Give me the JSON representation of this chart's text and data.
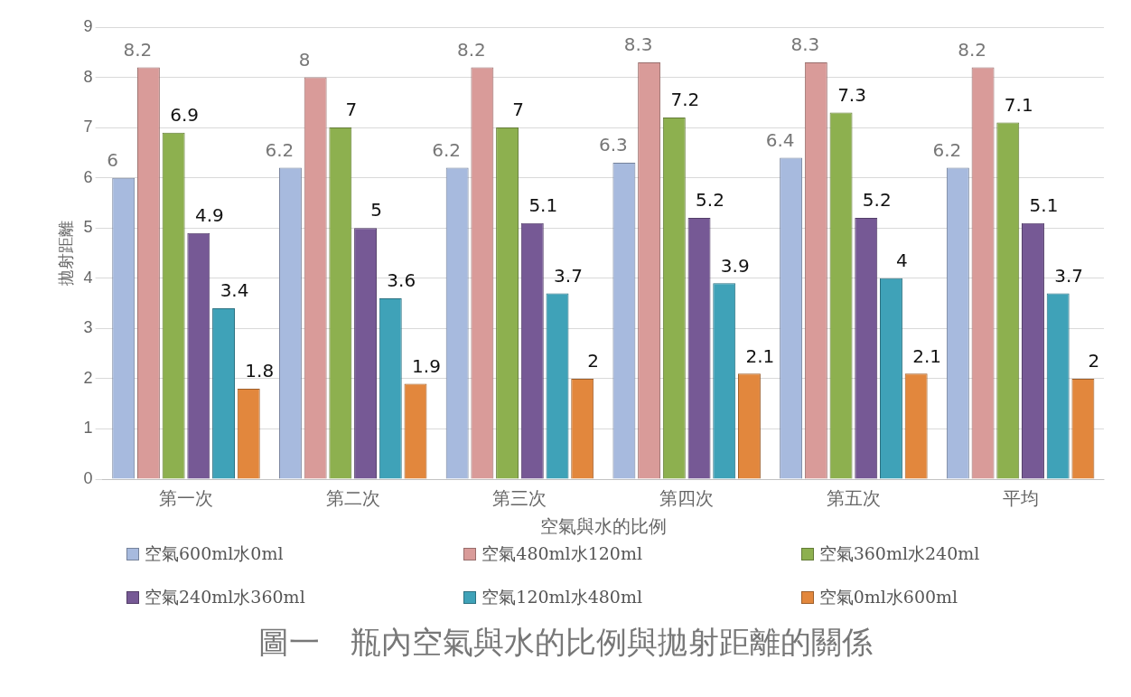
{
  "chart_data": {
    "type": "bar",
    "title": "圖一　瓶內空氣與水的比例與拋射距離的關係",
    "xlabel": "空氣與水的比例",
    "ylabel": "拋射距離",
    "categories": [
      "第一次",
      "第二次",
      "第三次",
      "第四次",
      "第五次",
      "平均"
    ],
    "series": [
      {
        "name": "空氣600ml水0ml",
        "color": "#a7bade",
        "values": [
          6,
          6.2,
          6.2,
          6.3,
          6.4,
          6.2
        ]
      },
      {
        "name": "空氣480ml水120ml",
        "color": "#d99b99",
        "values": [
          8.2,
          8,
          8.2,
          8.3,
          8.3,
          8.2
        ]
      },
      {
        "name": "空氣360ml水240ml",
        "color": "#8db04f",
        "values": [
          6.9,
          7,
          7,
          7.2,
          7.3,
          7.1
        ]
      },
      {
        "name": "空氣240ml水360ml",
        "color": "#765995",
        "values": [
          4.9,
          5,
          5.1,
          5.2,
          5.2,
          5.1
        ]
      },
      {
        "name": "空氣120ml水480ml",
        "color": "#3fa2b8",
        "values": [
          3.4,
          3.6,
          3.7,
          3.9,
          4,
          3.7
        ]
      },
      {
        "name": "空氣0ml水600ml",
        "color": "#e2873d",
        "values": [
          1.8,
          1.9,
          2,
          2.1,
          2.1,
          2
        ]
      }
    ],
    "ylim": [
      0,
      9
    ],
    "yticks": [
      0,
      1,
      2,
      3,
      4,
      5,
      6,
      7,
      8,
      9
    ],
    "grid": "y",
    "legend": "bottom",
    "data_labels": true
  }
}
